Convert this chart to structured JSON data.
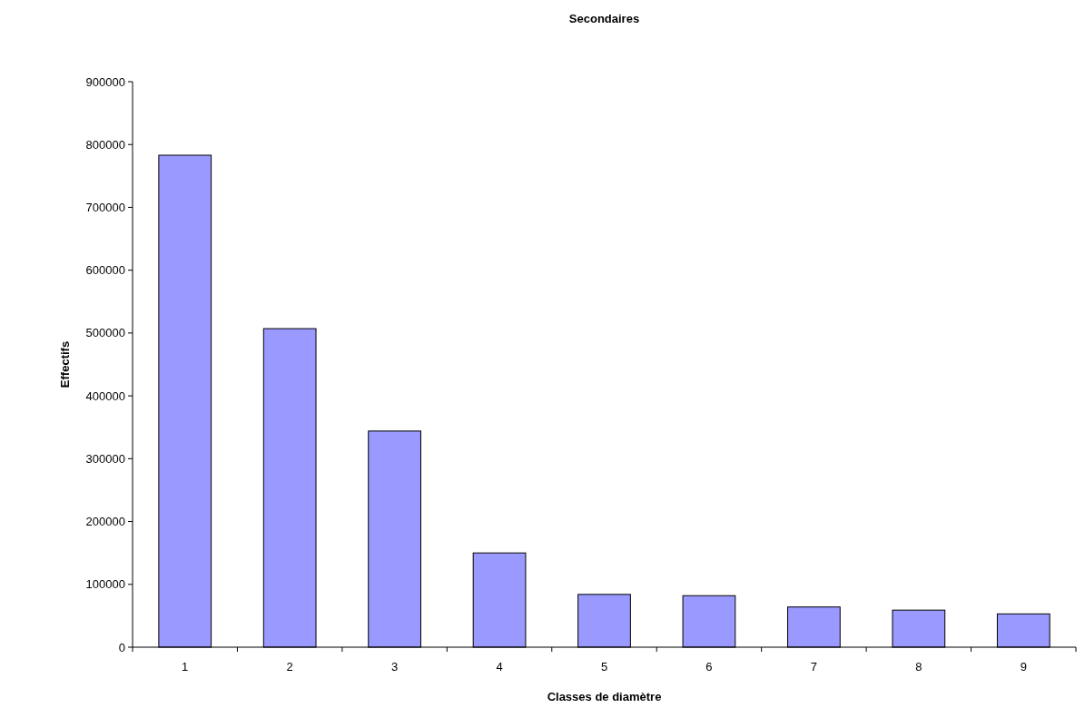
{
  "chart_data": {
    "type": "bar",
    "title": "Secondaires",
    "xlabel": "Classes de diamètre",
    "ylabel": "Effectifs",
    "categories": [
      "1",
      "2",
      "3",
      "4",
      "5",
      "6",
      "7",
      "8",
      "9"
    ],
    "values": [
      783000,
      507000,
      344000,
      150000,
      84000,
      82000,
      64000,
      59000,
      53000
    ],
    "color": "#9999ff",
    "ylim": [
      0,
      900000
    ],
    "yticks": [
      0,
      100000,
      200000,
      300000,
      400000,
      500000,
      600000,
      700000,
      800000,
      900000
    ],
    "grid": false
  }
}
